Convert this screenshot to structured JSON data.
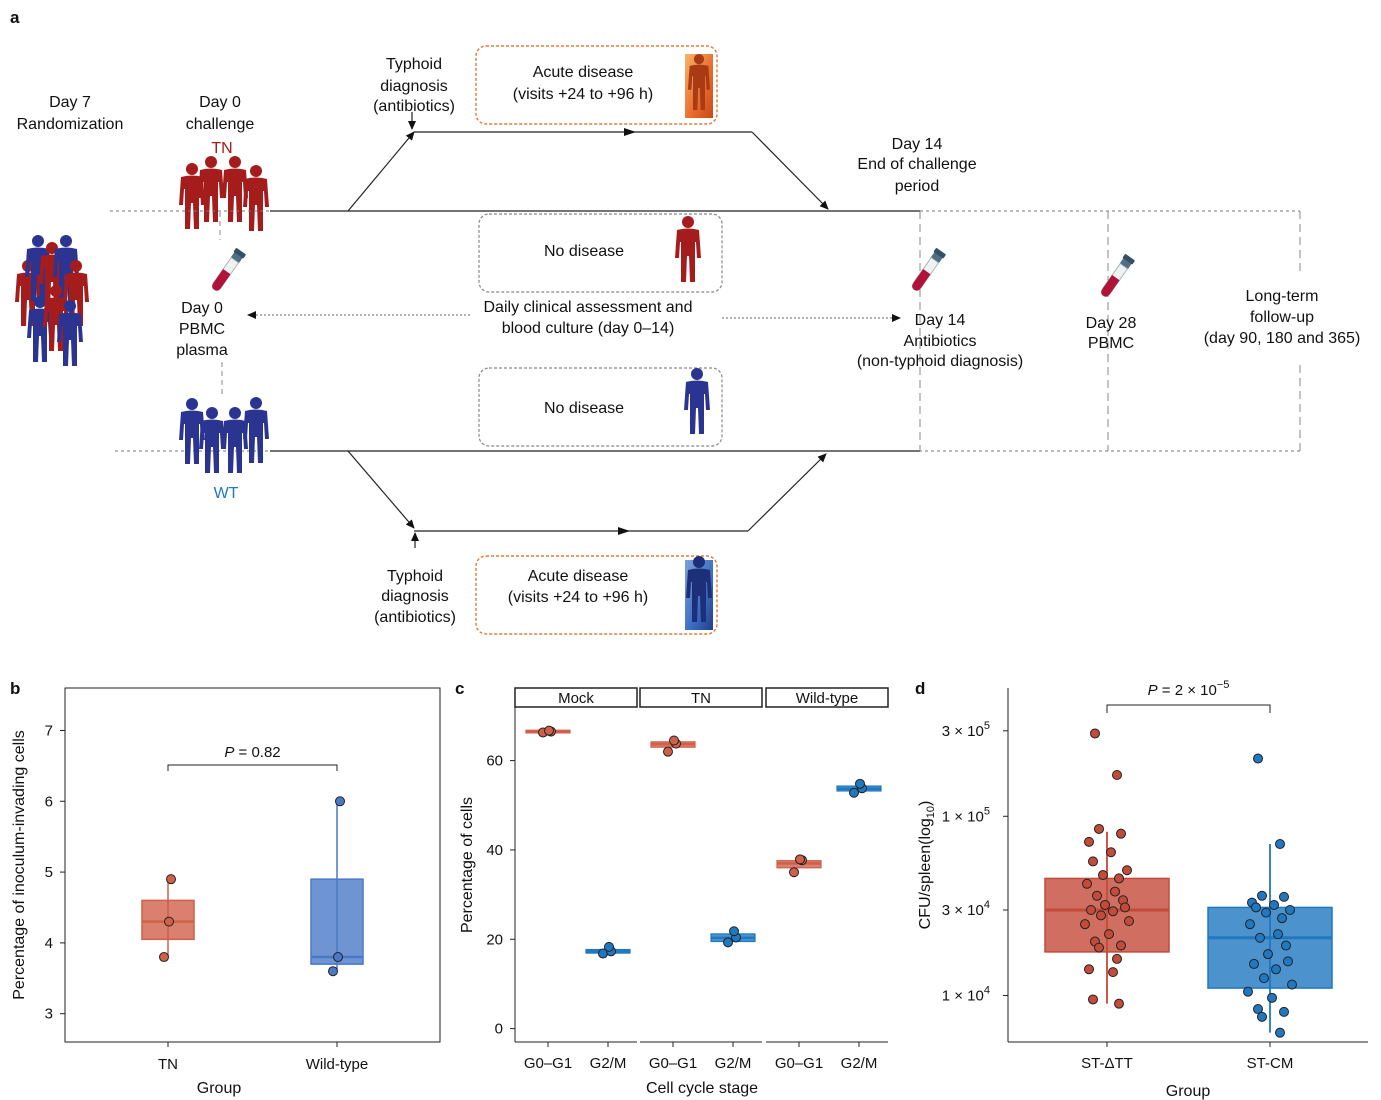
{
  "panel_a": {
    "letter": "a",
    "randomization": [
      "Day 7",
      "Randomization"
    ],
    "challenge": [
      "Day 0",
      "challenge"
    ],
    "tn_label": "TN",
    "wt_label": "WT",
    "typhoid_top": [
      "Typhoid",
      "diagnosis",
      "(antibiotics)"
    ],
    "typhoid_bottom": [
      "Typhoid",
      "diagnosis",
      "(antibiotics)"
    ],
    "acute_top": [
      "Acute disease",
      "(visits +24 to +96 h)"
    ],
    "acute_bottom": [
      "Acute disease",
      "(visits +24 to +96 h)"
    ],
    "no_disease_top": "No disease",
    "no_disease_bottom": "No disease",
    "end_challenge": [
      "Day 14",
      "End of challenge",
      "period"
    ],
    "day0_pbmc": [
      "Day 0",
      "PBMC",
      "plasma"
    ],
    "daily_assessment": [
      "Daily clinical assessment and",
      "blood culture (day 0–14)"
    ],
    "day14_antibiotics": [
      "Day 14",
      "Antibiotics",
      "(non-typhoid diagnosis)"
    ],
    "day28": [
      "Day 28",
      "PBMC"
    ],
    "long_term": [
      "Long-term",
      "follow-up",
      "(day 90, 180 and 365)"
    ],
    "colors": {
      "tn": "#a51c1c",
      "wt": "#2b3591",
      "orange_border": "#e07b39",
      "grey_border": "#888888"
    }
  },
  "chart_data": [
    {
      "panel": "b",
      "type": "box",
      "xlabel": "Group",
      "ylabel": "Percentage of inoculum-invading cells",
      "ylim": [
        2.6,
        7.6
      ],
      "yticks": [
        3,
        4,
        5,
        6,
        7
      ],
      "annotation": "P = 0.82",
      "groups": [
        {
          "name": "TN",
          "color": "#d0604a",
          "q1": 4.05,
          "median": 4.3,
          "q3": 4.6,
          "whisker_low": 3.8,
          "whisker_high": 4.9,
          "points": [
            3.8,
            4.3,
            4.9
          ]
        },
        {
          "name": "Wild-type",
          "color": "#4a79c7",
          "q1": 3.7,
          "median": 3.8,
          "q3": 4.9,
          "whisker_low": 3.6,
          "whisker_high": 6.0,
          "points": [
            3.6,
            3.8,
            6.0
          ]
        }
      ]
    },
    {
      "panel": "c",
      "type": "box",
      "xlabel": "Cell cycle stage",
      "ylabel": "Percentage of cells",
      "ylim": [
        -3,
        72
      ],
      "yticks": [
        0,
        20,
        40,
        60
      ],
      "facets": [
        {
          "name": "Mock",
          "boxes": [
            {
              "stage": "G0–G1",
              "color": "#d0604a",
              "median": 66.5,
              "q1": 66.2,
              "q3": 66.8,
              "points": [
                66.3,
                66.5,
                66.7
              ]
            },
            {
              "stage": "G2/M",
              "color": "#1f78c0",
              "median": 17.3,
              "q1": 16.9,
              "q3": 17.7,
              "points": [
                16.8,
                17.3,
                18.3
              ]
            }
          ]
        },
        {
          "name": "TN",
          "boxes": [
            {
              "stage": "G0–G1",
              "color": "#d0604a",
              "median": 63.7,
              "q1": 63.0,
              "q3": 64.2,
              "points": [
                62.0,
                63.8,
                64.5
              ]
            },
            {
              "stage": "G2/M",
              "color": "#1f78c0",
              "median": 20.3,
              "q1": 19.5,
              "q3": 21.2,
              "points": [
                19.3,
                20.4,
                21.8
              ]
            }
          ]
        },
        {
          "name": "Wild-type",
          "boxes": [
            {
              "stage": "G0–G1",
              "color": "#d0604a",
              "median": 37.0,
              "q1": 36.0,
              "q3": 37.6,
              "points": [
                35.0,
                37.7,
                37.9
              ]
            },
            {
              "stage": "G2/M",
              "color": "#1f78c0",
              "median": 53.7,
              "q1": 53.2,
              "q3": 54.3,
              "points": [
                52.8,
                53.8,
                54.8
              ]
            }
          ]
        }
      ]
    },
    {
      "panel": "d",
      "type": "box",
      "scale": "log10",
      "xlabel": "Group",
      "ylabel": "CFU/spleen(log10)",
      "ylim": [
        5500,
        520000
      ],
      "yticks": [
        10000,
        30000,
        100000,
        300000
      ],
      "ytick_labels": [
        "1 × 10",
        "3 × 10",
        "1 × 10",
        "3 × 10"
      ],
      "ytick_exponents": [
        "4",
        "4",
        "5",
        "5"
      ],
      "annotation": "P = 2 × 10",
      "annotation_exponent": "−5",
      "groups": [
        {
          "name": "ST-ΔTT",
          "color": "#c44a3a",
          "q1": 17500,
          "median": 30000,
          "q3": 45000,
          "whisker_low": 9000,
          "whisker_high": 82000,
          "points": [
            290000,
            170000,
            85000,
            80000,
            72000,
            63000,
            56000,
            50000,
            47000,
            45000,
            42000,
            38000,
            36000,
            34000,
            32000,
            31000,
            30000,
            29500,
            28000,
            26000,
            25000,
            22000,
            20000,
            19000,
            18500,
            16000,
            14000,
            13500,
            9500,
            9000
          ]
        },
        {
          "name": "ST-CM",
          "color": "#1f78c0",
          "q1": 11000,
          "median": 21000,
          "q3": 31000,
          "whisker_low": 6200,
          "whisker_high": 70000,
          "points": [
            210000,
            70000,
            36000,
            35500,
            33000,
            32000,
            31000,
            30000,
            29000,
            27000,
            25000,
            22000,
            21000,
            19000,
            17000,
            15500,
            15000,
            14000,
            12500,
            11500,
            10500,
            9700,
            8400,
            8100,
            7600,
            6200
          ]
        }
      ]
    }
  ]
}
